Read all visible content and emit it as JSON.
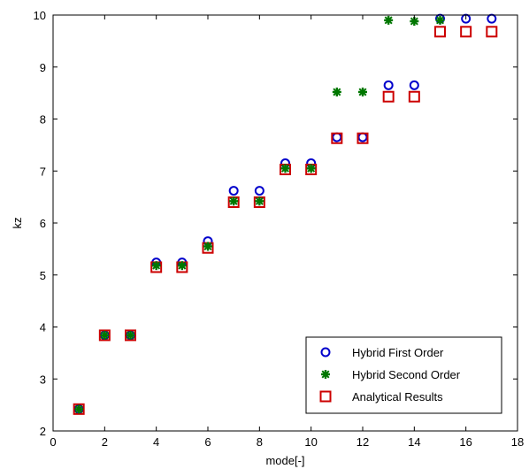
{
  "chart_data": {
    "type": "scatter",
    "xlabel": "mode[-]",
    "ylabel": "kz",
    "xlim": [
      0,
      18
    ],
    "ylim": [
      2,
      10
    ],
    "xticks": [
      0,
      2,
      4,
      6,
      8,
      10,
      12,
      14,
      16,
      18
    ],
    "yticks": [
      2,
      3,
      4,
      5,
      6,
      7,
      8,
      9,
      10
    ],
    "grid": false,
    "legend_position": "bottom-right",
    "series": [
      {
        "name": "Hybrid First Order",
        "marker": "circle",
        "color": "#0000cc",
        "x": [
          1,
          2,
          3,
          4,
          5,
          6,
          7,
          8,
          9,
          10,
          11,
          12,
          13,
          14,
          15,
          16,
          17
        ],
        "y": [
          2.42,
          3.84,
          3.84,
          5.24,
          5.24,
          5.65,
          6.62,
          6.62,
          7.15,
          7.15,
          7.65,
          7.65,
          8.65,
          8.65,
          9.93,
          9.93,
          9.93
        ]
      },
      {
        "name": "Hybrid Second Order",
        "marker": "star",
        "color": "#007700",
        "x": [
          1,
          2,
          3,
          4,
          5,
          6,
          7,
          8,
          9,
          10,
          11,
          12,
          13,
          14,
          15
        ],
        "y": [
          2.42,
          3.84,
          3.84,
          5.18,
          5.18,
          5.55,
          6.42,
          6.42,
          7.05,
          7.05,
          8.52,
          8.52,
          9.9,
          9.88,
          9.9
        ]
      },
      {
        "name": "Analytical Results",
        "marker": "square",
        "color": "#cc0000",
        "x": [
          1,
          2,
          3,
          4,
          5,
          6,
          7,
          8,
          9,
          10,
          11,
          12,
          13,
          14,
          15,
          16,
          17
        ],
        "y": [
          2.42,
          3.84,
          3.84,
          5.15,
          5.15,
          5.52,
          6.4,
          6.4,
          7.03,
          7.03,
          7.63,
          7.63,
          8.43,
          8.43,
          9.68,
          9.68,
          9.68
        ]
      }
    ]
  }
}
